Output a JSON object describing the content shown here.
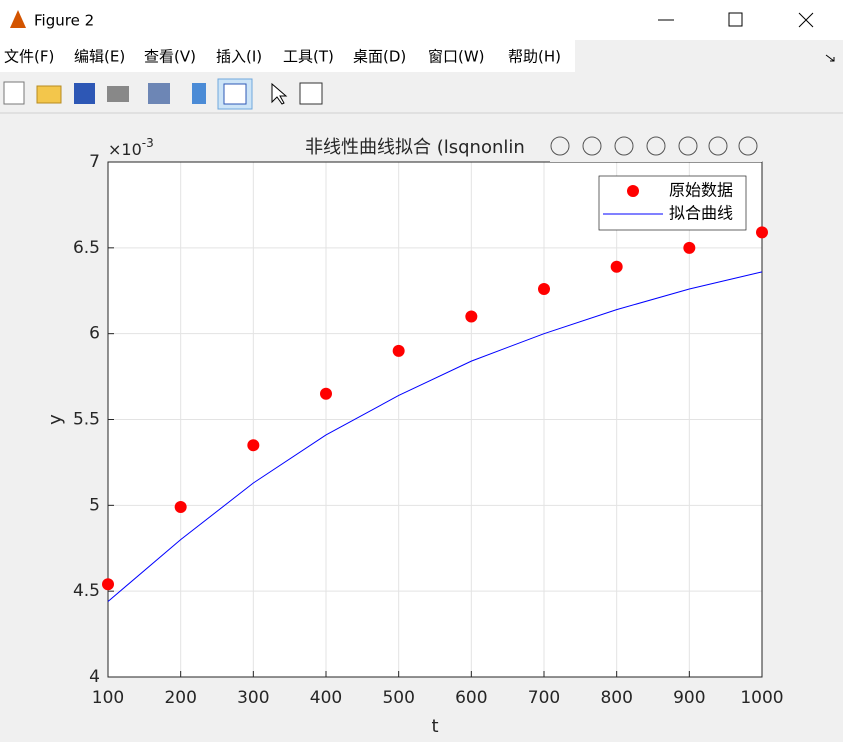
{
  "window": {
    "title": "Figure 2"
  },
  "menu": [
    "文件(F)",
    "编辑(E)",
    "查看(V)",
    "插入(I)",
    "工具(T)",
    "桌面(D)",
    "窗口(W)",
    "帮助(H)"
  ],
  "chart_data": {
    "type": "line",
    "title": "非线性曲线拟合 (lsqnonlin",
    "x_label": "t",
    "y_label": "y",
    "y_multiplier": {
      "base": "×10",
      "exponent": "-3"
    },
    "x": [
      100,
      200,
      300,
      400,
      500,
      600,
      700,
      800,
      900,
      1000
    ],
    "series": [
      {
        "name": "原始数据",
        "color": "#ff0000",
        "marker": "o",
        "values": [
          4.54,
          4.99,
          5.35,
          5.65,
          5.9,
          6.1,
          6.26,
          6.39,
          6.5,
          6.59
        ]
      },
      {
        "name": "拟合曲线",
        "color": "#0000ff",
        "marker": "none",
        "values": [
          4.44,
          4.8,
          5.13,
          5.41,
          5.64,
          5.84,
          6.0,
          6.14,
          6.26,
          6.36
        ]
      }
    ],
    "xlim": [
      100,
      1000
    ],
    "ylim": [
      4,
      7
    ],
    "xticks": [
      100,
      200,
      300,
      400,
      500,
      600,
      700,
      800,
      900,
      1000
    ],
    "yticks": [
      4,
      4.5,
      5,
      5.5,
      6,
      6.5,
      7
    ],
    "grid": true,
    "legend": "northeast"
  }
}
